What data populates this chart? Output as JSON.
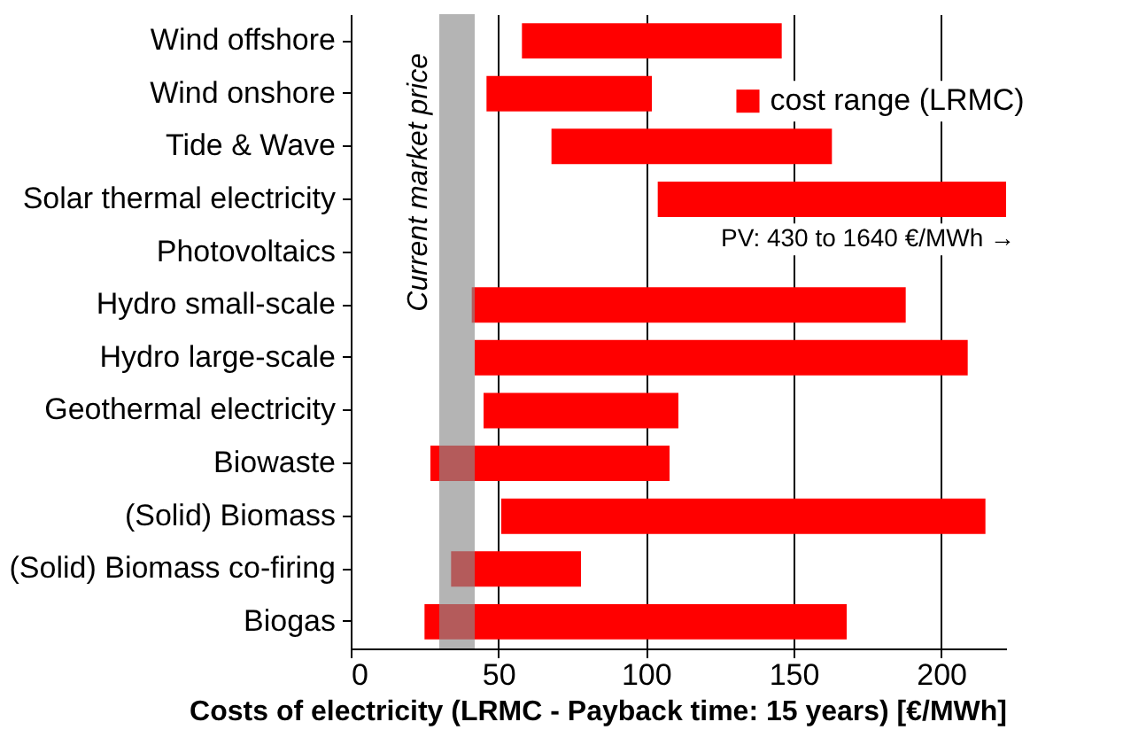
{
  "chart_data": {
    "type": "bar",
    "orientation": "horizontal",
    "xlabel": "Costs of electricity (LRMC - Payback time: 15 years) [€/MWh]",
    "categories": [
      "Wind offshore",
      "Wind onshore",
      "Tide & Wave",
      "Solar thermal electricity",
      "Photovoltaics",
      "Hydro small-scale",
      "Hydro large-scale",
      "Geothermal electricity",
      "Biowaste",
      "(Solid) Biomass",
      "(Solid) Biomass co-firing",
      "Biogas"
    ],
    "series": [
      {
        "name": "cost range (LRMC)",
        "color": "#ff0000",
        "base": [
          58,
          46,
          68,
          104,
          null,
          41,
          42,
          45,
          27,
          51,
          34,
          25
        ],
        "values": [
          88,
          56,
          95,
          118,
          null,
          147,
          167,
          66,
          81,
          164,
          44,
          143
        ]
      }
    ],
    "xlim": [
      0,
      222
    ],
    "xticks": [
      0,
      50,
      100,
      150,
      200
    ],
    "grid": "x",
    "legend": "top right",
    "bands": [
      {
        "axis": "x",
        "from": 30,
        "to": 42,
        "label": "Current market price",
        "color": "#8c8c8c"
      }
    ],
    "annotations": [
      "PV: 430 to 1640 €/MWh →"
    ]
  }
}
